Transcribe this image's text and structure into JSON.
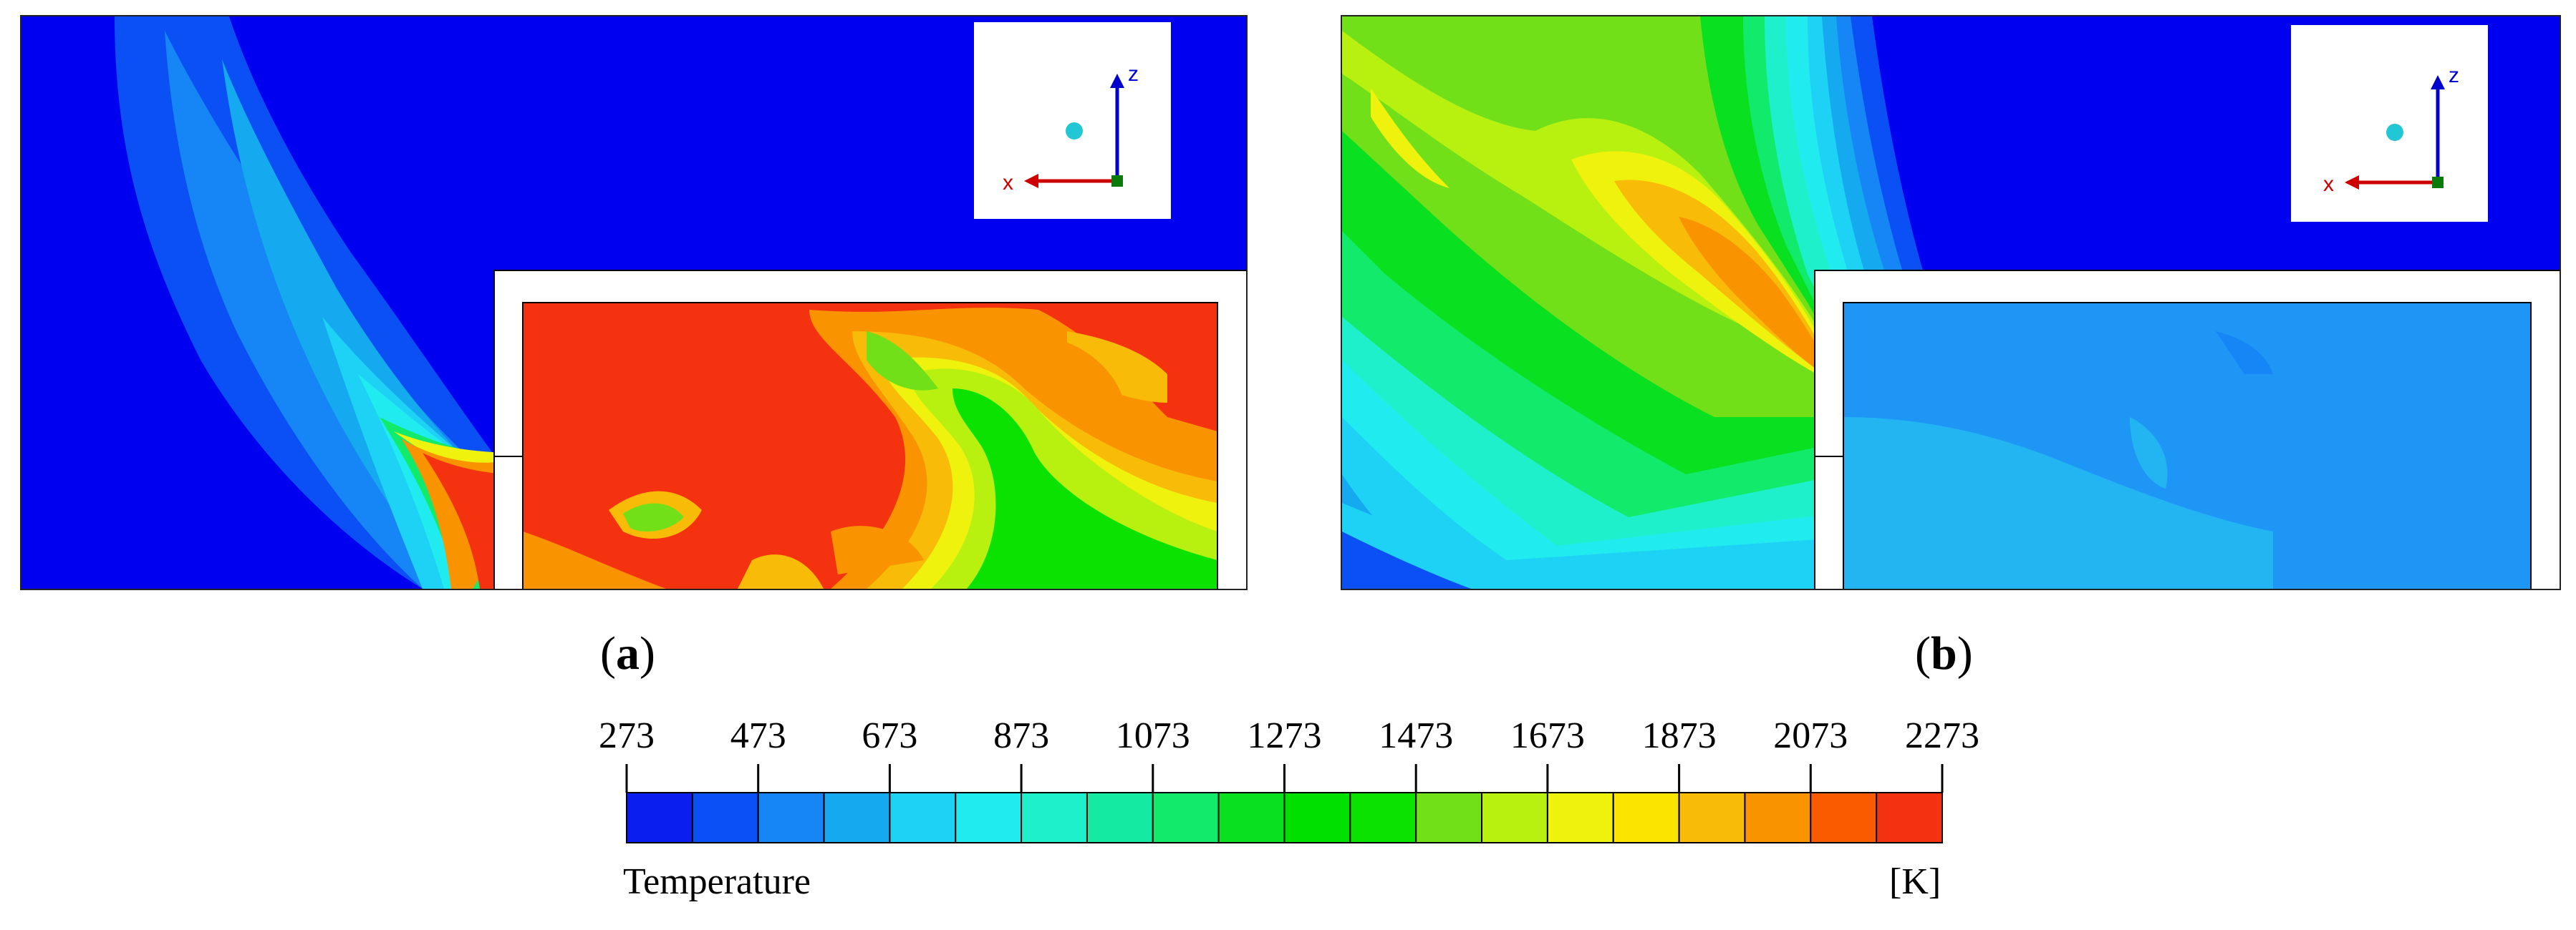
{
  "panels": [
    {
      "id": "a",
      "label": "a",
      "axis_labels": {
        "vertical": "z",
        "horizontal": "x"
      }
    },
    {
      "id": "b",
      "label": "b",
      "axis_labels": {
        "vertical": "z",
        "horizontal": "x"
      }
    }
  ],
  "legend": {
    "title": "Temperature",
    "unit": "[K]",
    "ticks": [
      "273",
      "473",
      "673",
      "873",
      "1073",
      "1273",
      "1473",
      "1673",
      "1873",
      "2073",
      "2273"
    ],
    "range": [
      273,
      2273
    ],
    "bands": 20,
    "colors": [
      "#0a1ef0",
      "#0a50f5",
      "#1685f5",
      "#15aaf0",
      "#1ed2f5",
      "#20ecf0",
      "#1ff0cc",
      "#15eaa3",
      "#12ea6c",
      "#08e020",
      "#00e000",
      "#0ce200",
      "#72e018",
      "#b8f010",
      "#eef20d",
      "#fae400",
      "#f7bb08",
      "#fa9300",
      "#fa5a00",
      "#f53210"
    ]
  },
  "colors": {
    "background": "#ffffff",
    "field_min": "#0000f0",
    "field_max": "#f53210",
    "frame": "#000000"
  }
}
